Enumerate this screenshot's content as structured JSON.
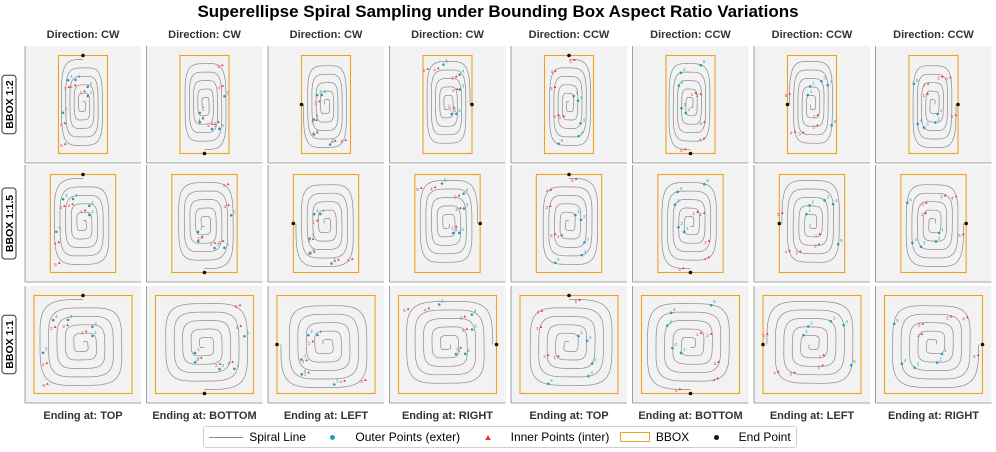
{
  "title": "Superellipse Spiral Sampling under Bounding Box Aspect Ratio Variations",
  "column_headers": [
    "Direction: CW",
    "Direction: CW",
    "Direction: CW",
    "Direction: CW",
    "Direction: CCW",
    "Direction: CCW",
    "Direction: CCW",
    "Direction: CCW"
  ],
  "column_footers": [
    "Ending at: TOP",
    "Ending at: BOTTOM",
    "Ending at: LEFT",
    "Ending at: RIGHT",
    "Ending at: TOP",
    "Ending at: BOTTOM",
    "Ending at: LEFT",
    "Ending at: RIGHT"
  ],
  "row_labels": [
    "BBOX 1:2",
    "BBOX 1:1.5",
    "BBOX 1:1"
  ],
  "legend": {
    "spiral_line": "Spiral Line",
    "outer_points": "Outer Points (exter)",
    "inner_points": "Inner Points (inter)",
    "bbox": "BBOX",
    "end_point": "End Point"
  },
  "colors": {
    "spiral": "#8a8a8a",
    "outer": "#2a9bb8",
    "inner": "#e0403a",
    "bbox": "#f0a020",
    "end": "#111111",
    "panel_bg": "#f2f2f2"
  },
  "chart_data": {
    "type": "scatter",
    "title": "Superellipse Spiral Sampling under Bounding Box Aspect Ratio Variations",
    "layout": "grid 3 rows x 8 columns",
    "rows": [
      {
        "label": "BBOX 1:2",
        "aspect_w": 1,
        "aspect_h": 2
      },
      {
        "label": "BBOX 1:1.5",
        "aspect_w": 1,
        "aspect_h": 1.5
      },
      {
        "label": "BBOX 1:1",
        "aspect_w": 1,
        "aspect_h": 1
      }
    ],
    "columns": [
      {
        "direction": "CW",
        "ending": "TOP"
      },
      {
        "direction": "CW",
        "ending": "BOTTOM"
      },
      {
        "direction": "CW",
        "ending": "LEFT"
      },
      {
        "direction": "CW",
        "ending": "RIGHT"
      },
      {
        "direction": "CCW",
        "ending": "TOP"
      },
      {
        "direction": "CCW",
        "ending": "BOTTOM"
      },
      {
        "direction": "CCW",
        "ending": "LEFT"
      },
      {
        "direction": "CCW",
        "ending": "RIGHT"
      }
    ],
    "spiral_turns": 5,
    "outer_point_labels": [
      "1",
      "2",
      "3",
      "4",
      "5"
    ],
    "inner_point_labels": [
      "1",
      "2",
      "3",
      "4",
      "5"
    ],
    "axes_visible": false,
    "grid": false,
    "legend_position": "bottom-center"
  }
}
